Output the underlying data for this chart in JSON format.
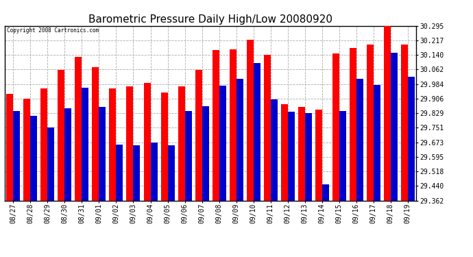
{
  "title": "Barometric Pressure Daily High/Low 20080920",
  "copyright_text": "Copyright 2008 Cartronics.com",
  "dates": [
    "08/27",
    "08/28",
    "08/29",
    "08/30",
    "08/31",
    "09/01",
    "09/02",
    "09/03",
    "09/04",
    "09/05",
    "09/06",
    "09/07",
    "09/08",
    "09/09",
    "09/10",
    "09/11",
    "09/12",
    "09/13",
    "09/14",
    "09/15",
    "09/16",
    "09/17",
    "09/18",
    "09/19"
  ],
  "highs": [
    29.93,
    29.905,
    29.96,
    30.06,
    30.13,
    30.075,
    29.96,
    29.97,
    29.99,
    29.94,
    29.97,
    30.06,
    30.165,
    30.17,
    30.22,
    30.14,
    29.875,
    29.86,
    29.848,
    30.145,
    30.175,
    30.195,
    30.295,
    30.195
  ],
  "lows": [
    29.84,
    29.815,
    29.75,
    29.855,
    29.965,
    29.86,
    29.66,
    29.655,
    29.67,
    29.655,
    29.84,
    29.865,
    29.975,
    30.01,
    30.095,
    29.9,
    29.835,
    29.83,
    29.448,
    29.84,
    30.01,
    29.98,
    30.15,
    30.022
  ],
  "bar_color_high": "#ff0000",
  "bar_color_low": "#0000cd",
  "bg_color": "#ffffff",
  "grid_color": "#aaaaaa",
  "title_fontsize": 11,
  "yticks": [
    29.362,
    29.44,
    29.518,
    29.595,
    29.673,
    29.751,
    29.829,
    29.906,
    29.984,
    30.062,
    30.14,
    30.217,
    30.295
  ],
  "ylim_min": 29.362,
  "ylim_max": 30.295,
  "bar_width": 0.4
}
